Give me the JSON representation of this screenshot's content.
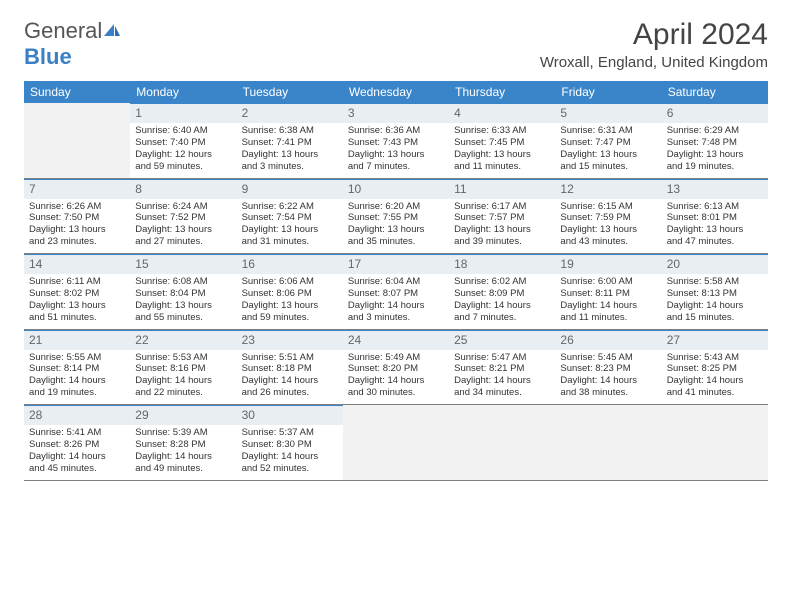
{
  "logo": {
    "word1": "General",
    "word2": "Blue"
  },
  "title": "April 2024",
  "location": "Wroxall, England, United Kingdom",
  "colors": {
    "header_bg": "#3a85c9",
    "header_text": "#ffffff",
    "daynum_bg": "#e9eef3",
    "daynum_border": "#3a85c9",
    "week_border": "#808080",
    "empty_bg": "#f2f2f2",
    "logo_blue": "#3a7fc4"
  },
  "weekdays": [
    "Sunday",
    "Monday",
    "Tuesday",
    "Wednesday",
    "Thursday",
    "Friday",
    "Saturday"
  ],
  "layout": {
    "first_weekday_index": 1,
    "days_in_month": 30
  },
  "days": {
    "1": {
      "sunrise": "Sunrise: 6:40 AM",
      "sunset": "Sunset: 7:40 PM",
      "daylight1": "Daylight: 12 hours",
      "daylight2": "and 59 minutes."
    },
    "2": {
      "sunrise": "Sunrise: 6:38 AM",
      "sunset": "Sunset: 7:41 PM",
      "daylight1": "Daylight: 13 hours",
      "daylight2": "and 3 minutes."
    },
    "3": {
      "sunrise": "Sunrise: 6:36 AM",
      "sunset": "Sunset: 7:43 PM",
      "daylight1": "Daylight: 13 hours",
      "daylight2": "and 7 minutes."
    },
    "4": {
      "sunrise": "Sunrise: 6:33 AM",
      "sunset": "Sunset: 7:45 PM",
      "daylight1": "Daylight: 13 hours",
      "daylight2": "and 11 minutes."
    },
    "5": {
      "sunrise": "Sunrise: 6:31 AM",
      "sunset": "Sunset: 7:47 PM",
      "daylight1": "Daylight: 13 hours",
      "daylight2": "and 15 minutes."
    },
    "6": {
      "sunrise": "Sunrise: 6:29 AM",
      "sunset": "Sunset: 7:48 PM",
      "daylight1": "Daylight: 13 hours",
      "daylight2": "and 19 minutes."
    },
    "7": {
      "sunrise": "Sunrise: 6:26 AM",
      "sunset": "Sunset: 7:50 PM",
      "daylight1": "Daylight: 13 hours",
      "daylight2": "and 23 minutes."
    },
    "8": {
      "sunrise": "Sunrise: 6:24 AM",
      "sunset": "Sunset: 7:52 PM",
      "daylight1": "Daylight: 13 hours",
      "daylight2": "and 27 minutes."
    },
    "9": {
      "sunrise": "Sunrise: 6:22 AM",
      "sunset": "Sunset: 7:54 PM",
      "daylight1": "Daylight: 13 hours",
      "daylight2": "and 31 minutes."
    },
    "10": {
      "sunrise": "Sunrise: 6:20 AM",
      "sunset": "Sunset: 7:55 PM",
      "daylight1": "Daylight: 13 hours",
      "daylight2": "and 35 minutes."
    },
    "11": {
      "sunrise": "Sunrise: 6:17 AM",
      "sunset": "Sunset: 7:57 PM",
      "daylight1": "Daylight: 13 hours",
      "daylight2": "and 39 minutes."
    },
    "12": {
      "sunrise": "Sunrise: 6:15 AM",
      "sunset": "Sunset: 7:59 PM",
      "daylight1": "Daylight: 13 hours",
      "daylight2": "and 43 minutes."
    },
    "13": {
      "sunrise": "Sunrise: 6:13 AM",
      "sunset": "Sunset: 8:01 PM",
      "daylight1": "Daylight: 13 hours",
      "daylight2": "and 47 minutes."
    },
    "14": {
      "sunrise": "Sunrise: 6:11 AM",
      "sunset": "Sunset: 8:02 PM",
      "daylight1": "Daylight: 13 hours",
      "daylight2": "and 51 minutes."
    },
    "15": {
      "sunrise": "Sunrise: 6:08 AM",
      "sunset": "Sunset: 8:04 PM",
      "daylight1": "Daylight: 13 hours",
      "daylight2": "and 55 minutes."
    },
    "16": {
      "sunrise": "Sunrise: 6:06 AM",
      "sunset": "Sunset: 8:06 PM",
      "daylight1": "Daylight: 13 hours",
      "daylight2": "and 59 minutes."
    },
    "17": {
      "sunrise": "Sunrise: 6:04 AM",
      "sunset": "Sunset: 8:07 PM",
      "daylight1": "Daylight: 14 hours",
      "daylight2": "and 3 minutes."
    },
    "18": {
      "sunrise": "Sunrise: 6:02 AM",
      "sunset": "Sunset: 8:09 PM",
      "daylight1": "Daylight: 14 hours",
      "daylight2": "and 7 minutes."
    },
    "19": {
      "sunrise": "Sunrise: 6:00 AM",
      "sunset": "Sunset: 8:11 PM",
      "daylight1": "Daylight: 14 hours",
      "daylight2": "and 11 minutes."
    },
    "20": {
      "sunrise": "Sunrise: 5:58 AM",
      "sunset": "Sunset: 8:13 PM",
      "daylight1": "Daylight: 14 hours",
      "daylight2": "and 15 minutes."
    },
    "21": {
      "sunrise": "Sunrise: 5:55 AM",
      "sunset": "Sunset: 8:14 PM",
      "daylight1": "Daylight: 14 hours",
      "daylight2": "and 19 minutes."
    },
    "22": {
      "sunrise": "Sunrise: 5:53 AM",
      "sunset": "Sunset: 8:16 PM",
      "daylight1": "Daylight: 14 hours",
      "daylight2": "and 22 minutes."
    },
    "23": {
      "sunrise": "Sunrise: 5:51 AM",
      "sunset": "Sunset: 8:18 PM",
      "daylight1": "Daylight: 14 hours",
      "daylight2": "and 26 minutes."
    },
    "24": {
      "sunrise": "Sunrise: 5:49 AM",
      "sunset": "Sunset: 8:20 PM",
      "daylight1": "Daylight: 14 hours",
      "daylight2": "and 30 minutes."
    },
    "25": {
      "sunrise": "Sunrise: 5:47 AM",
      "sunset": "Sunset: 8:21 PM",
      "daylight1": "Daylight: 14 hours",
      "daylight2": "and 34 minutes."
    },
    "26": {
      "sunrise": "Sunrise: 5:45 AM",
      "sunset": "Sunset: 8:23 PM",
      "daylight1": "Daylight: 14 hours",
      "daylight2": "and 38 minutes."
    },
    "27": {
      "sunrise": "Sunrise: 5:43 AM",
      "sunset": "Sunset: 8:25 PM",
      "daylight1": "Daylight: 14 hours",
      "daylight2": "and 41 minutes."
    },
    "28": {
      "sunrise": "Sunrise: 5:41 AM",
      "sunset": "Sunset: 8:26 PM",
      "daylight1": "Daylight: 14 hours",
      "daylight2": "and 45 minutes."
    },
    "29": {
      "sunrise": "Sunrise: 5:39 AM",
      "sunset": "Sunset: 8:28 PM",
      "daylight1": "Daylight: 14 hours",
      "daylight2": "and 49 minutes."
    },
    "30": {
      "sunrise": "Sunrise: 5:37 AM",
      "sunset": "Sunset: 8:30 PM",
      "daylight1": "Daylight: 14 hours",
      "daylight2": "and 52 minutes."
    }
  }
}
